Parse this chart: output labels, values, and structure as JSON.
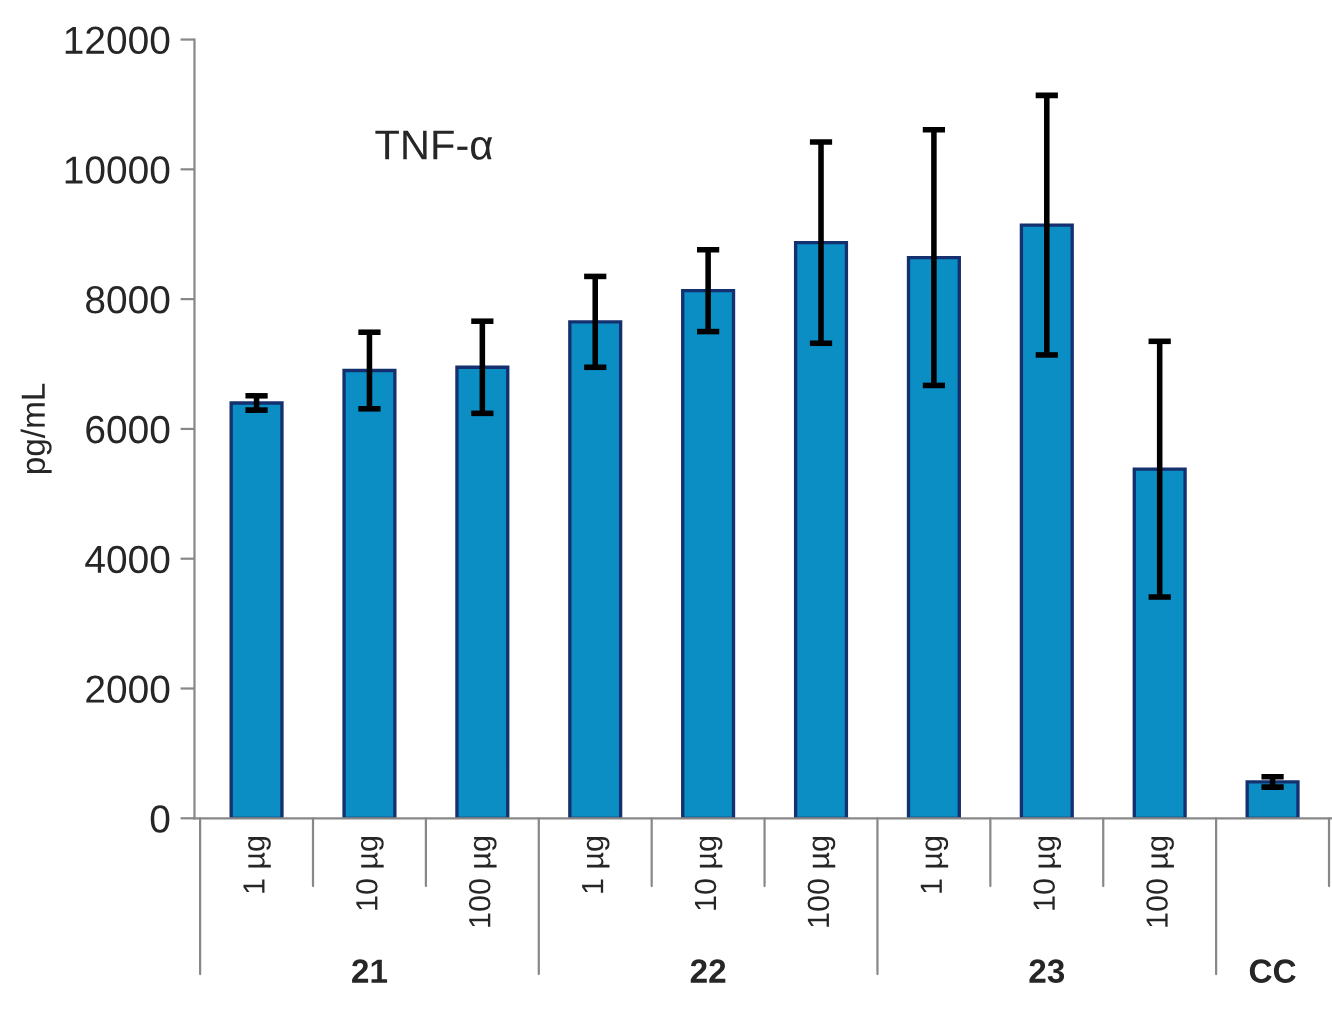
{
  "chart_data": {
    "type": "bar",
    "title": "TNF-α",
    "ylabel": "pg/mL",
    "categories": [
      "1 µg",
      "10 µg",
      "100 µg",
      "1 µg",
      "10 µg",
      "100 µg",
      "1 µg",
      "10 µg",
      "100 µg",
      null
    ],
    "values": [
      6400,
      6900,
      6950,
      7650,
      8130,
      8870,
      8640,
      9140,
      5380,
      560
    ],
    "errors": [
      110,
      590,
      710,
      700,
      630,
      1550,
      1970,
      2000,
      1970,
      80
    ],
    "color": "#0a8ec4",
    "ylim": [
      0,
      12000
    ],
    "yticks": [
      0,
      2000,
      4000,
      6000,
      8000,
      10000,
      12000
    ],
    "annotations": [
      "21",
      "22",
      "23",
      "CC"
    ],
    "grid": false,
    "legend": false
  }
}
